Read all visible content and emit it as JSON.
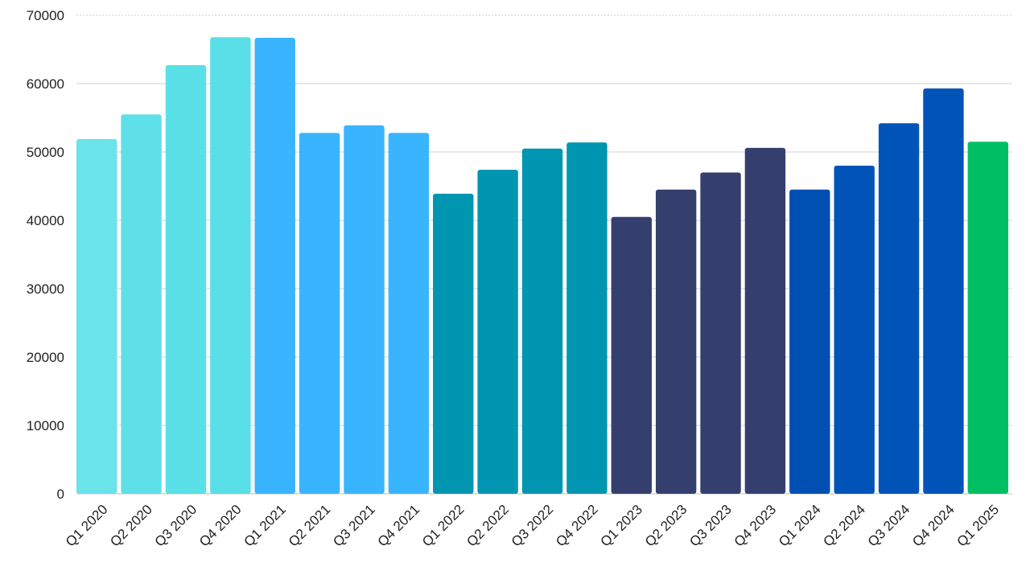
{
  "chart_data": {
    "type": "bar",
    "categories": [
      "Q1 2020",
      "Q2 2020",
      "Q3 2020",
      "Q4 2020",
      "Q1 2021",
      "Q2 2021",
      "Q3 2021",
      "Q4 2021",
      "Q1 2022",
      "Q2 2022",
      "Q3 2022",
      "Q4 2022",
      "Q1 2023",
      "Q2 2023",
      "Q3 2023",
      "Q4 2023",
      "Q1 2024",
      "Q2 2024",
      "Q3 2024",
      "Q4 2024",
      "Q1 2025"
    ],
    "values": [
      51900,
      55500,
      62700,
      66800,
      66700,
      52800,
      53900,
      52800,
      43900,
      47400,
      50500,
      51400,
      40500,
      44500,
      47000,
      50600,
      44500,
      48000,
      54200,
      59300,
      51500
    ],
    "colors": [
      "#6ae3ea",
      "#5fe0e8",
      "#5ae0e7",
      "#58dfe7",
      "#39b5ff",
      "#39b5ff",
      "#39b5ff",
      "#39b5ff",
      "#0096b1",
      "#0096b1",
      "#0096b1",
      "#0096b1",
      "#343f6e",
      "#343f6e",
      "#343f6e",
      "#343f6e",
      "#004fb3",
      "#0054b8",
      "#0054b8",
      "#0054b8",
      "#00bf63"
    ],
    "ylim": [
      0,
      70000
    ],
    "yticks": [
      "0",
      "10000",
      "20000",
      "30000",
      "40000",
      "50000",
      "60000",
      "70000"
    ],
    "title": "",
    "xlabel": "",
    "ylabel": "",
    "grid": true,
    "legend": "none"
  }
}
